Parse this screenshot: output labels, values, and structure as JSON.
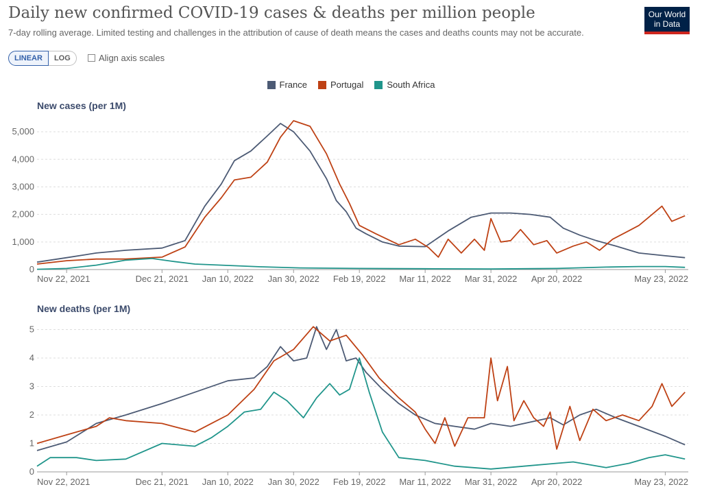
{
  "header": {
    "title": "Daily new confirmed COVID-19 cases & deaths per million people",
    "subtitle": "7-day rolling average. Limited testing and challenges in the attribution of cause of death means the cases and deaths counts may not be accurate.",
    "logo_line1": "Our World",
    "logo_line2": "in Data"
  },
  "controls": {
    "linear_label": "LINEAR",
    "log_label": "LOG",
    "active_scale": "LINEAR",
    "align_label": "Align axis scales",
    "align_checked": false
  },
  "legend": [
    {
      "name": "France",
      "color": "#4c5a74"
    },
    {
      "name": "Portugal",
      "color": "#be4114"
    },
    {
      "name": "South Africa",
      "color": "#20958b"
    }
  ],
  "chart_data": [
    {
      "type": "line",
      "title": "New cases (per 1M)",
      "ylim": [
        0,
        5500
      ],
      "yticks": [
        0,
        1000,
        2000,
        3000,
        4000,
        5000
      ],
      "ytick_labels": [
        "0",
        "1,000",
        "2,000",
        "3,000",
        "4,000",
        "5,000"
      ],
      "x_range": [
        "2021-11-13",
        "2022-05-30"
      ],
      "xticks": [
        "2021-11-22",
        "2021-12-21",
        "2022-01-10",
        "2022-01-30",
        "2022-02-19",
        "2022-03-11",
        "2022-03-31",
        "2022-04-20",
        "2022-05-23"
      ],
      "xtick_labels": [
        "Nov 22, 2021",
        "Dec 21, 2021",
        "Jan 10, 2022",
        "Jan 30, 2022",
        "Feb 19, 2022",
        "Mar 11, 2022",
        "Mar 31, 2022",
        "Apr 20, 2022",
        "May 23, 2022"
      ],
      "grid": true,
      "series": [
        {
          "name": "France",
          "color": "#4c5a74",
          "x": [
            "2021-11-13",
            "2021-11-22",
            "2021-12-01",
            "2021-12-10",
            "2021-12-21",
            "2021-12-28",
            "2022-01-03",
            "2022-01-08",
            "2022-01-12",
            "2022-01-17",
            "2022-01-22",
            "2022-01-26",
            "2022-01-30",
            "2022-02-04",
            "2022-02-09",
            "2022-02-12",
            "2022-02-15",
            "2022-02-18",
            "2022-02-21",
            "2022-02-26",
            "2022-03-03",
            "2022-03-11",
            "2022-03-18",
            "2022-03-25",
            "2022-03-31",
            "2022-04-06",
            "2022-04-12",
            "2022-04-18",
            "2022-04-22",
            "2022-04-27",
            "2022-05-02",
            "2022-05-08",
            "2022-05-15",
            "2022-05-23",
            "2022-05-29"
          ],
          "y": [
            270,
            430,
            600,
            700,
            780,
            1050,
            2300,
            3100,
            3950,
            4300,
            4850,
            5300,
            5000,
            4300,
            3300,
            2500,
            2100,
            1500,
            1300,
            1000,
            850,
            830,
            1400,
            1900,
            2050,
            2050,
            2000,
            1900,
            1500,
            1250,
            1050,
            850,
            600,
            500,
            430
          ]
        },
        {
          "name": "Portugal",
          "color": "#be4114",
          "x": [
            "2021-11-13",
            "2021-11-22",
            "2021-12-01",
            "2021-12-10",
            "2021-12-21",
            "2021-12-28",
            "2022-01-03",
            "2022-01-08",
            "2022-01-12",
            "2022-01-17",
            "2022-01-22",
            "2022-01-26",
            "2022-01-30",
            "2022-02-04",
            "2022-02-09",
            "2022-02-13",
            "2022-02-16",
            "2022-02-19",
            "2022-02-24",
            "2022-03-03",
            "2022-03-08",
            "2022-03-12",
            "2022-03-15",
            "2022-03-18",
            "2022-03-22",
            "2022-03-26",
            "2022-03-29",
            "2022-03-31",
            "2022-04-03",
            "2022-04-06",
            "2022-04-09",
            "2022-04-13",
            "2022-04-17",
            "2022-04-20",
            "2022-04-25",
            "2022-04-29",
            "2022-05-03",
            "2022-05-07",
            "2022-05-11",
            "2022-05-15",
            "2022-05-18",
            "2022-05-22",
            "2022-05-25",
            "2022-05-29"
          ],
          "y": [
            200,
            320,
            380,
            380,
            450,
            820,
            1900,
            2600,
            3250,
            3350,
            3900,
            4800,
            5400,
            5200,
            4200,
            3100,
            2400,
            1600,
            1300,
            900,
            1100,
            800,
            450,
            1100,
            600,
            1100,
            700,
            1850,
            1000,
            1050,
            1450,
            900,
            1050,
            600,
            850,
            1000,
            700,
            1100,
            1350,
            1600,
            1900,
            2300,
            1750,
            1950
          ]
        },
        {
          "name": "South Africa",
          "color": "#20958b",
          "x": [
            "2021-11-13",
            "2021-11-22",
            "2021-12-01",
            "2021-12-10",
            "2021-12-18",
            "2021-12-24",
            "2021-12-31",
            "2022-01-10",
            "2022-01-20",
            "2022-02-01",
            "2022-02-19",
            "2022-03-11",
            "2022-03-31",
            "2022-04-20",
            "2022-05-05",
            "2022-05-15",
            "2022-05-23",
            "2022-05-29"
          ],
          "y": [
            10,
            40,
            160,
            340,
            400,
            300,
            200,
            150,
            100,
            60,
            40,
            30,
            20,
            40,
            90,
            110,
            110,
            80
          ]
        }
      ]
    },
    {
      "type": "line",
      "title": "New deaths (per 1M)",
      "ylim": [
        0,
        5.3
      ],
      "yticks": [
        0,
        1,
        2,
        3,
        4,
        5
      ],
      "ytick_labels": [
        "0",
        "1",
        "2",
        "3",
        "4",
        "5"
      ],
      "x_range": [
        "2021-11-13",
        "2022-05-30"
      ],
      "xticks": [
        "2021-11-22",
        "2021-12-21",
        "2022-01-10",
        "2022-01-30",
        "2022-02-19",
        "2022-03-11",
        "2022-03-31",
        "2022-04-20",
        "2022-05-23"
      ],
      "xtick_labels": [
        "Nov 22, 2021",
        "Dec 21, 2021",
        "Jan 10, 2022",
        "Jan 30, 2022",
        "Feb 19, 2022",
        "Mar 11, 2022",
        "Mar 31, 2022",
        "Apr 20, 2022",
        "May 23, 2022"
      ],
      "grid": true,
      "series": [
        {
          "name": "France",
          "color": "#4c5a74",
          "x": [
            "2021-11-13",
            "2021-11-22",
            "2021-12-01",
            "2021-12-10",
            "2021-12-21",
            "2021-12-31",
            "2022-01-10",
            "2022-01-18",
            "2022-01-22",
            "2022-01-26",
            "2022-01-30",
            "2022-02-03",
            "2022-02-06",
            "2022-02-09",
            "2022-02-12",
            "2022-02-15",
            "2022-02-18",
            "2022-02-21",
            "2022-02-26",
            "2022-03-03",
            "2022-03-08",
            "2022-03-14",
            "2022-03-20",
            "2022-03-26",
            "2022-03-31",
            "2022-04-06",
            "2022-04-12",
            "2022-04-18",
            "2022-04-22",
            "2022-04-27",
            "2022-05-02",
            "2022-05-08",
            "2022-05-15",
            "2022-05-23",
            "2022-05-29"
          ],
          "y": [
            0.75,
            1.05,
            1.7,
            2.0,
            2.4,
            2.8,
            3.2,
            3.3,
            3.7,
            4.4,
            3.9,
            4.0,
            5.1,
            4.3,
            5.0,
            3.9,
            4.0,
            3.5,
            2.9,
            2.4,
            2.0,
            1.7,
            1.6,
            1.5,
            1.7,
            1.6,
            1.75,
            1.9,
            1.65,
            2.0,
            2.2,
            1.9,
            1.6,
            1.25,
            0.95
          ]
        },
        {
          "name": "Portugal",
          "color": "#be4114",
          "x": [
            "2021-11-13",
            "2021-11-22",
            "2021-12-01",
            "2021-12-05",
            "2021-12-10",
            "2021-12-21",
            "2021-12-31",
            "2022-01-05",
            "2022-01-10",
            "2022-01-18",
            "2022-01-24",
            "2022-01-30",
            "2022-02-05",
            "2022-02-10",
            "2022-02-15",
            "2022-02-20",
            "2022-02-25",
            "2022-03-03",
            "2022-03-08",
            "2022-03-11",
            "2022-03-14",
            "2022-03-17",
            "2022-03-20",
            "2022-03-24",
            "2022-03-29",
            "2022-03-31",
            "2022-04-02",
            "2022-04-05",
            "2022-04-07",
            "2022-04-10",
            "2022-04-13",
            "2022-04-16",
            "2022-04-18",
            "2022-04-20",
            "2022-04-24",
            "2022-04-27",
            "2022-05-01",
            "2022-05-05",
            "2022-05-10",
            "2022-05-15",
            "2022-05-19",
            "2022-05-22",
            "2022-05-25",
            "2022-05-29"
          ],
          "y": [
            1.0,
            1.3,
            1.6,
            1.9,
            1.8,
            1.7,
            1.4,
            1.7,
            2.0,
            2.9,
            3.9,
            4.3,
            5.1,
            4.6,
            4.8,
            4.1,
            3.3,
            2.6,
            2.1,
            1.5,
            1.0,
            1.9,
            0.9,
            1.9,
            1.9,
            4.0,
            2.5,
            3.7,
            1.8,
            2.5,
            1.9,
            1.6,
            2.1,
            0.8,
            2.3,
            1.1,
            2.2,
            1.8,
            2.0,
            1.8,
            2.3,
            3.1,
            2.3,
            2.8
          ]
        },
        {
          "name": "South Africa",
          "color": "#20958b",
          "x": [
            "2021-11-13",
            "2021-11-17",
            "2021-11-25",
            "2021-12-01",
            "2021-12-10",
            "2021-12-21",
            "2021-12-31",
            "2022-01-05",
            "2022-01-10",
            "2022-01-15",
            "2022-01-20",
            "2022-01-24",
            "2022-01-28",
            "2022-02-02",
            "2022-02-06",
            "2022-02-10",
            "2022-02-13",
            "2022-02-16",
            "2022-02-19",
            "2022-02-22",
            "2022-02-26",
            "2022-03-03",
            "2022-03-11",
            "2022-03-20",
            "2022-03-31",
            "2022-04-10",
            "2022-04-20",
            "2022-04-25",
            "2022-05-05",
            "2022-05-12",
            "2022-05-18",
            "2022-05-23",
            "2022-05-29"
          ],
          "y": [
            0.2,
            0.5,
            0.5,
            0.4,
            0.45,
            1.0,
            0.9,
            1.2,
            1.6,
            2.1,
            2.2,
            2.8,
            2.5,
            1.9,
            2.6,
            3.1,
            2.7,
            2.9,
            4.0,
            2.8,
            1.4,
            0.5,
            0.4,
            0.2,
            0.1,
            0.2,
            0.3,
            0.35,
            0.15,
            0.3,
            0.5,
            0.6,
            0.45
          ]
        }
      ]
    }
  ]
}
